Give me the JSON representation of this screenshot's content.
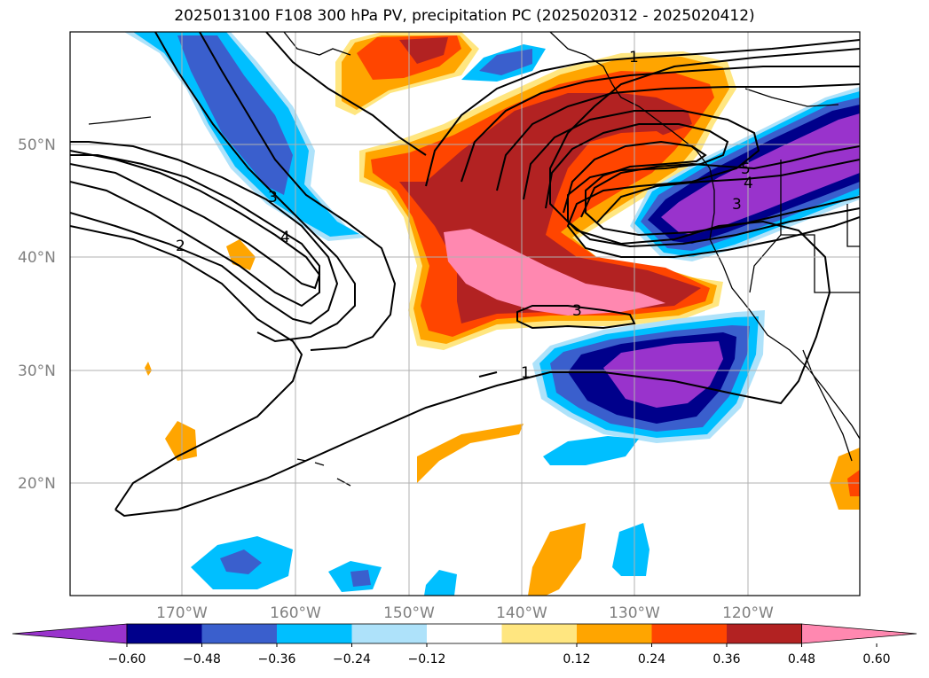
{
  "title": "2025013100 F108 300 hPa PV, precipitation PC (2025020312 - 2025020412)",
  "map": {
    "lat_ticks": [
      "50°N",
      "40°N",
      "30°N",
      "20°N"
    ],
    "lon_ticks": [
      "170°W",
      "160°W",
      "150°W",
      "140°W",
      "130°W",
      "120°W"
    ],
    "pv_contour_labels": [
      "1",
      "1",
      "2",
      "3",
      "3",
      "4",
      "4",
      "5",
      "3"
    ],
    "grid": true
  },
  "colorbar": {
    "ticks": [
      "−0.60",
      "−0.48",
      "−0.36",
      "−0.24",
      "−0.12",
      "0.12",
      "0.24",
      "0.36",
      "0.48",
      "0.60"
    ],
    "colors": [
      "#9933cc",
      "#00008b",
      "#3a5fcd",
      "#00bfff",
      "#aee2fa",
      "#ffffff",
      "#ffe680",
      "#ffa500",
      "#ff4500",
      "#b22222",
      "#ff88b0"
    ]
  },
  "colors": {
    "neg_060": "#9933cc",
    "neg_048": "#00008b",
    "neg_036": "#3a5fcd",
    "neg_024": "#00bfff",
    "neg_012": "#aee2fa",
    "pos_012": "#ffe680",
    "pos_024": "#ffa500",
    "pos_036": "#ff4500",
    "pos_048": "#b22222",
    "pos_060": "#ff88b0"
  }
}
